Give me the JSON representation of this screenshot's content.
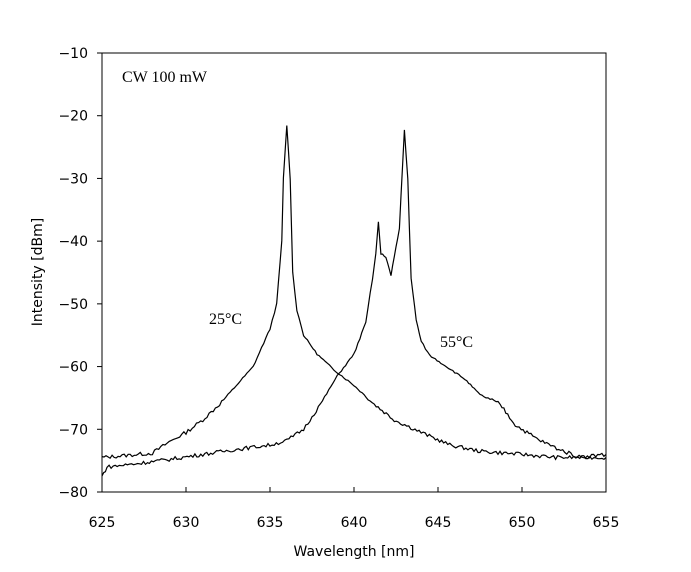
{
  "chart_data": {
    "type": "line",
    "title": "",
    "xlabel": "Wavelength [nm]",
    "ylabel": "Intensity [dBm]",
    "xlim": [
      625,
      655
    ],
    "ylim": [
      -80,
      -10
    ],
    "xticks": [
      625,
      630,
      635,
      640,
      645,
      650,
      655
    ],
    "yticks": [
      -10,
      -20,
      -30,
      -40,
      -50,
      -60,
      -70,
      -80
    ],
    "grid": false,
    "legend": "none",
    "annotations": {
      "condition": "CW 100 mW",
      "label_25": "25°C",
      "label_55": "55°C"
    },
    "series": [
      {
        "name": "25°C",
        "color": "#000000",
        "points": [
          [
            625,
            -74.5
          ],
          [
            628,
            -73.8
          ],
          [
            629,
            -72
          ],
          [
            630,
            -70.5
          ],
          [
            631,
            -68.5
          ],
          [
            632,
            -66
          ],
          [
            633,
            -63
          ],
          [
            634,
            -60
          ],
          [
            634.5,
            -57
          ],
          [
            635,
            -54
          ],
          [
            635.4,
            -50
          ],
          [
            635.7,
            -40
          ],
          [
            635.8,
            -30
          ],
          [
            636,
            -21.5
          ],
          [
            636.2,
            -30
          ],
          [
            636.35,
            -45
          ],
          [
            636.6,
            -51
          ],
          [
            637,
            -55
          ],
          [
            637.8,
            -58
          ],
          [
            638.8,
            -60.5
          ],
          [
            640,
            -63
          ],
          [
            641.2,
            -66
          ],
          [
            642.4,
            -68.5
          ],
          [
            644,
            -70.5
          ],
          [
            645.7,
            -72.5
          ],
          [
            647.5,
            -73.5
          ],
          [
            650,
            -74
          ],
          [
            652,
            -74.5
          ],
          [
            655,
            -74.5
          ]
        ]
      },
      {
        "name": "55°C",
        "color": "#000000",
        "points": [
          [
            625,
            -77.5
          ],
          [
            625.3,
            -76
          ],
          [
            627,
            -75.5
          ],
          [
            629,
            -74.8
          ],
          [
            631,
            -74
          ],
          [
            633,
            -73.2
          ],
          [
            635,
            -72.5
          ],
          [
            636,
            -71.8
          ],
          [
            637,
            -70
          ],
          [
            638,
            -66
          ],
          [
            639,
            -61.5
          ],
          [
            640,
            -58
          ],
          [
            640.7,
            -53
          ],
          [
            641.1,
            -46
          ],
          [
            641.3,
            -42
          ],
          [
            641.45,
            -37
          ],
          [
            641.6,
            -42
          ],
          [
            641.9,
            -42.5
          ],
          [
            642.2,
            -45.5
          ],
          [
            642.5,
            -41
          ],
          [
            642.7,
            -38
          ],
          [
            643,
            -22.3
          ],
          [
            643.2,
            -30
          ],
          [
            643.4,
            -46
          ],
          [
            643.7,
            -52.5
          ],
          [
            644,
            -56
          ],
          [
            644.5,
            -58.2
          ],
          [
            645.4,
            -59.8
          ],
          [
            646.6,
            -62
          ],
          [
            647.5,
            -64.5
          ],
          [
            648.7,
            -66
          ],
          [
            649.6,
            -69.3
          ],
          [
            651,
            -71.7
          ],
          [
            652.3,
            -73.3
          ],
          [
            653.4,
            -74.4
          ],
          [
            655,
            -74
          ]
        ]
      }
    ]
  }
}
